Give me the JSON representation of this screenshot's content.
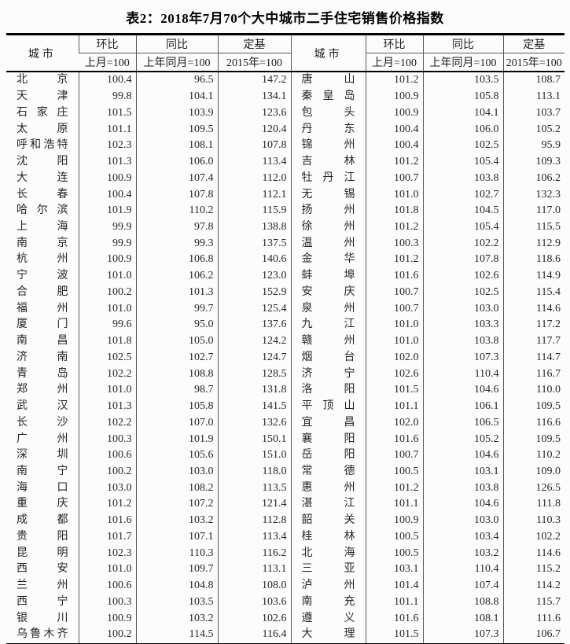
{
  "title": "表2：2018年7月70个大中城市二手住宅销售价格指数",
  "colors": {
    "border": "#000000",
    "text": "#262626",
    "background": "#fcfcfc"
  },
  "table": {
    "headers": {
      "city": "城市",
      "mom": "环比",
      "yoy": "同比",
      "fixed": "定基",
      "mom_base": "上月=100",
      "yoy_base": "上年同月=100",
      "fixed_base": "2015年=100"
    },
    "left_rows": [
      {
        "city": "北京",
        "mom": "100.4",
        "yoy": "96.5",
        "fixed": "147.2"
      },
      {
        "city": "天津",
        "mom": "99.8",
        "yoy": "104.1",
        "fixed": "134.1"
      },
      {
        "city": "石家庄",
        "mom": "101.5",
        "yoy": "103.9",
        "fixed": "123.6"
      },
      {
        "city": "太原",
        "mom": "101.1",
        "yoy": "109.5",
        "fixed": "120.4"
      },
      {
        "city": "呼和浩特",
        "mom": "102.3",
        "yoy": "108.1",
        "fixed": "107.8"
      },
      {
        "city": "沈阳",
        "mom": "101.3",
        "yoy": "106.0",
        "fixed": "113.4"
      },
      {
        "city": "大连",
        "mom": "100.9",
        "yoy": "107.4",
        "fixed": "112.0"
      },
      {
        "city": "长春",
        "mom": "100.4",
        "yoy": "107.8",
        "fixed": "112.1"
      },
      {
        "city": "哈尔滨",
        "mom": "101.9",
        "yoy": "110.2",
        "fixed": "115.9"
      },
      {
        "city": "上海",
        "mom": "99.9",
        "yoy": "97.8",
        "fixed": "138.8"
      },
      {
        "city": "南京",
        "mom": "99.9",
        "yoy": "99.3",
        "fixed": "137.5"
      },
      {
        "city": "杭州",
        "mom": "100.9",
        "yoy": "106.8",
        "fixed": "140.6"
      },
      {
        "city": "宁波",
        "mom": "101.0",
        "yoy": "106.2",
        "fixed": "123.0"
      },
      {
        "city": "合肥",
        "mom": "100.2",
        "yoy": "101.3",
        "fixed": "152.9"
      },
      {
        "city": "福州",
        "mom": "101.0",
        "yoy": "99.7",
        "fixed": "125.4"
      },
      {
        "city": "厦门",
        "mom": "99.6",
        "yoy": "95.0",
        "fixed": "137.6"
      },
      {
        "city": "南昌",
        "mom": "101.8",
        "yoy": "105.0",
        "fixed": "124.2"
      },
      {
        "city": "济南",
        "mom": "102.5",
        "yoy": "102.7",
        "fixed": "124.7"
      },
      {
        "city": "青岛",
        "mom": "102.2",
        "yoy": "108.8",
        "fixed": "128.5"
      },
      {
        "city": "郑州",
        "mom": "101.0",
        "yoy": "98.7",
        "fixed": "131.8"
      },
      {
        "city": "武汉",
        "mom": "101.3",
        "yoy": "105.8",
        "fixed": "141.5"
      },
      {
        "city": "长沙",
        "mom": "102.2",
        "yoy": "107.0",
        "fixed": "132.6"
      },
      {
        "city": "广州",
        "mom": "100.3",
        "yoy": "101.9",
        "fixed": "150.1"
      },
      {
        "city": "深圳",
        "mom": "100.6",
        "yoy": "105.6",
        "fixed": "151.0"
      },
      {
        "city": "南宁",
        "mom": "100.2",
        "yoy": "103.0",
        "fixed": "118.0"
      },
      {
        "city": "海口",
        "mom": "103.0",
        "yoy": "108.2",
        "fixed": "113.5"
      },
      {
        "city": "重庆",
        "mom": "101.2",
        "yoy": "107.2",
        "fixed": "121.4"
      },
      {
        "city": "成都",
        "mom": "101.6",
        "yoy": "103.2",
        "fixed": "112.8"
      },
      {
        "city": "贵阳",
        "mom": "101.7",
        "yoy": "107.1",
        "fixed": "113.4"
      },
      {
        "city": "昆明",
        "mom": "102.3",
        "yoy": "110.3",
        "fixed": "116.2"
      },
      {
        "city": "西安",
        "mom": "101.0",
        "yoy": "109.7",
        "fixed": "113.1"
      },
      {
        "city": "兰州",
        "mom": "100.6",
        "yoy": "104.8",
        "fixed": "108.0"
      },
      {
        "city": "西宁",
        "mom": "100.3",
        "yoy": "103.5",
        "fixed": "103.6"
      },
      {
        "city": "银川",
        "mom": "100.9",
        "yoy": "103.2",
        "fixed": "102.6"
      },
      {
        "city": "乌鲁木齐",
        "mom": "100.2",
        "yoy": "114.5",
        "fixed": "116.4"
      }
    ],
    "right_rows": [
      {
        "city": "唐山",
        "mom": "101.2",
        "yoy": "103.5",
        "fixed": "108.7"
      },
      {
        "city": "秦皇岛",
        "mom": "100.9",
        "yoy": "105.8",
        "fixed": "113.1"
      },
      {
        "city": "包头",
        "mom": "100.9",
        "yoy": "104.1",
        "fixed": "103.7"
      },
      {
        "city": "丹东",
        "mom": "100.4",
        "yoy": "106.0",
        "fixed": "105.2"
      },
      {
        "city": "锦州",
        "mom": "100.4",
        "yoy": "102.5",
        "fixed": "95.9"
      },
      {
        "city": "吉林",
        "mom": "101.2",
        "yoy": "105.4",
        "fixed": "109.3"
      },
      {
        "city": "牡丹江",
        "mom": "100.7",
        "yoy": "103.8",
        "fixed": "106.2"
      },
      {
        "city": "无锡",
        "mom": "101.0",
        "yoy": "102.7",
        "fixed": "132.3"
      },
      {
        "city": "扬州",
        "mom": "101.8",
        "yoy": "104.5",
        "fixed": "117.0"
      },
      {
        "city": "徐州",
        "mom": "101.2",
        "yoy": "105.4",
        "fixed": "115.5"
      },
      {
        "city": "温州",
        "mom": "100.3",
        "yoy": "102.2",
        "fixed": "112.9"
      },
      {
        "city": "金华",
        "mom": "101.2",
        "yoy": "107.8",
        "fixed": "118.6"
      },
      {
        "city": "蚌埠",
        "mom": "101.6",
        "yoy": "102.6",
        "fixed": "114.9"
      },
      {
        "city": "安庆",
        "mom": "100.7",
        "yoy": "102.5",
        "fixed": "115.4"
      },
      {
        "city": "泉州",
        "mom": "100.7",
        "yoy": "103.0",
        "fixed": "114.6"
      },
      {
        "city": "九江",
        "mom": "101.0",
        "yoy": "103.3",
        "fixed": "117.2"
      },
      {
        "city": "赣州",
        "mom": "101.0",
        "yoy": "103.8",
        "fixed": "117.7"
      },
      {
        "city": "烟台",
        "mom": "102.0",
        "yoy": "107.3",
        "fixed": "114.7"
      },
      {
        "city": "济宁",
        "mom": "102.6",
        "yoy": "110.4",
        "fixed": "116.7"
      },
      {
        "city": "洛阳",
        "mom": "101.5",
        "yoy": "104.6",
        "fixed": "110.0"
      },
      {
        "city": "平顶山",
        "mom": "101.1",
        "yoy": "106.1",
        "fixed": "109.5"
      },
      {
        "city": "宜昌",
        "mom": "102.0",
        "yoy": "106.5",
        "fixed": "116.6"
      },
      {
        "city": "襄阳",
        "mom": "101.6",
        "yoy": "105.2",
        "fixed": "109.5"
      },
      {
        "city": "岳阳",
        "mom": "100.7",
        "yoy": "104.6",
        "fixed": "110.2"
      },
      {
        "city": "常德",
        "mom": "100.5",
        "yoy": "103.1",
        "fixed": "109.0"
      },
      {
        "city": "惠州",
        "mom": "101.2",
        "yoy": "103.8",
        "fixed": "126.5"
      },
      {
        "city": "湛江",
        "mom": "101.1",
        "yoy": "104.6",
        "fixed": "111.8"
      },
      {
        "city": "韶关",
        "mom": "100.9",
        "yoy": "103.0",
        "fixed": "110.3"
      },
      {
        "city": "桂林",
        "mom": "100.5",
        "yoy": "103.4",
        "fixed": "102.2"
      },
      {
        "city": "北海",
        "mom": "100.5",
        "yoy": "103.2",
        "fixed": "114.6"
      },
      {
        "city": "三亚",
        "mom": "103.1",
        "yoy": "110.4",
        "fixed": "115.2"
      },
      {
        "city": "泸州",
        "mom": "101.4",
        "yoy": "107.4",
        "fixed": "114.2"
      },
      {
        "city": "南充",
        "mom": "101.1",
        "yoy": "108.8",
        "fixed": "115.7"
      },
      {
        "city": "遵义",
        "mom": "101.6",
        "yoy": "108.1",
        "fixed": "111.6"
      },
      {
        "city": "大理",
        "mom": "101.5",
        "yoy": "107.3",
        "fixed": "106.7"
      }
    ]
  }
}
